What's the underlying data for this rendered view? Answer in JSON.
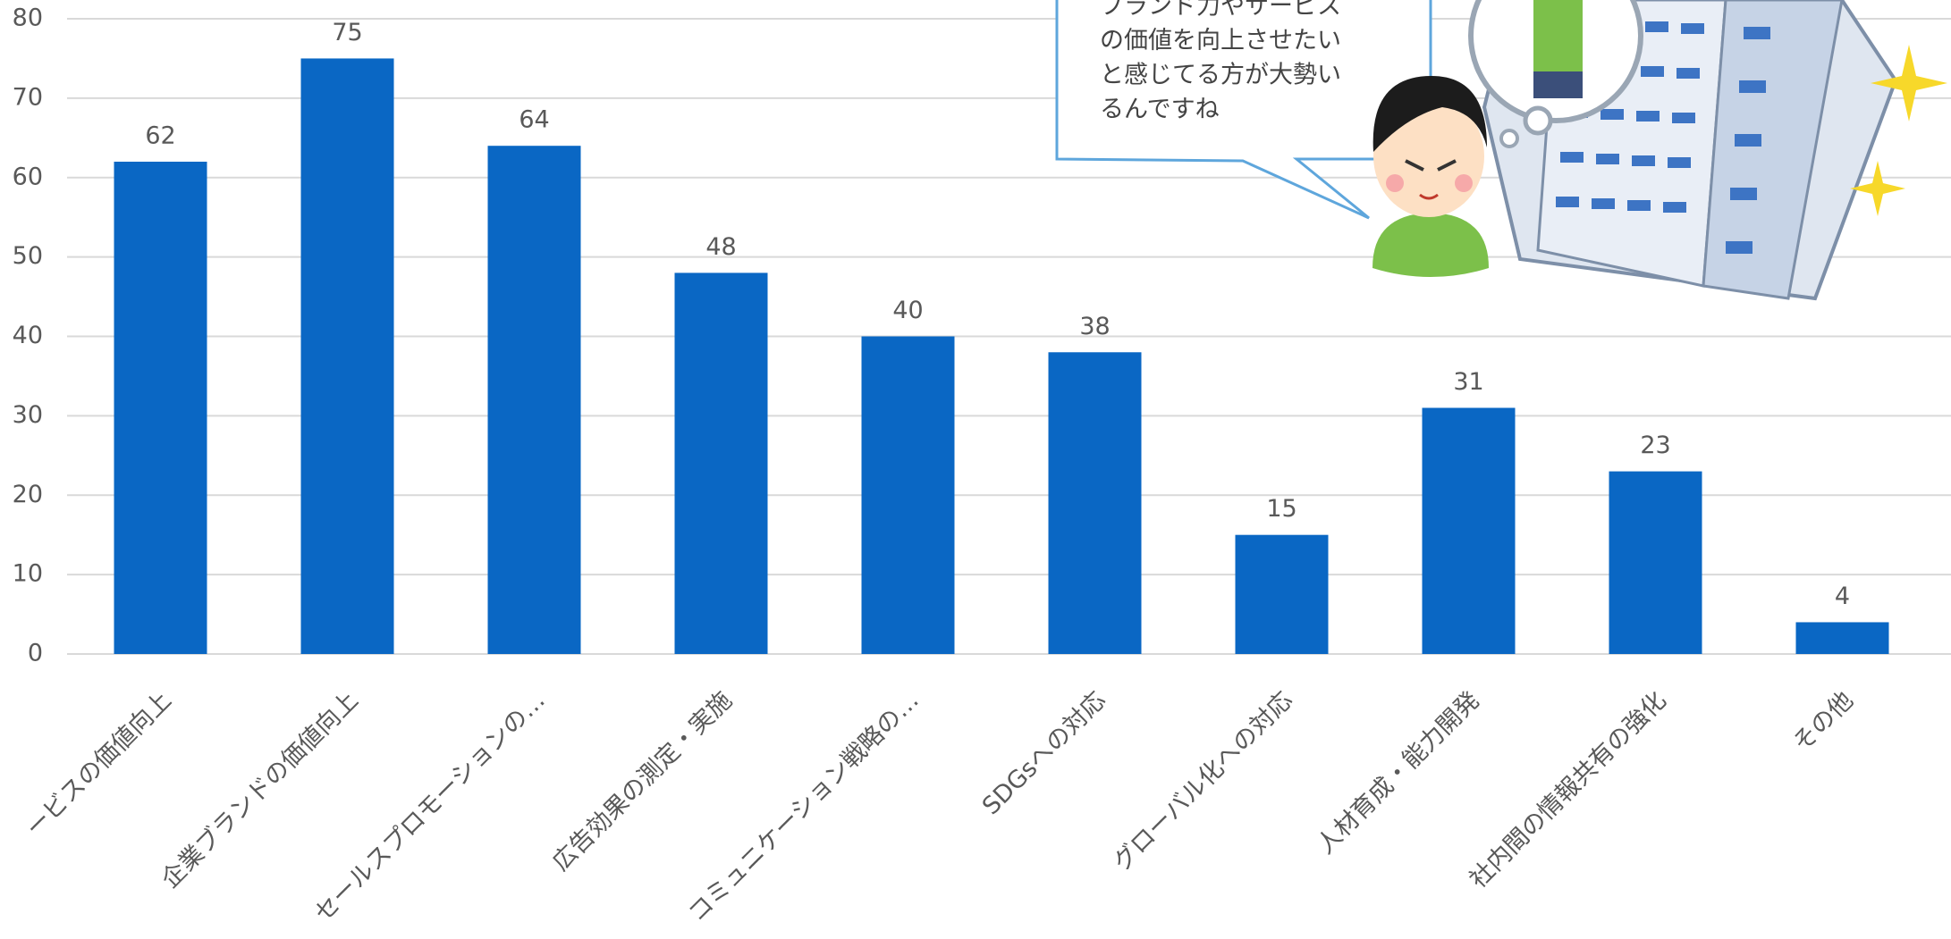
{
  "chart_data": {
    "type": "bar",
    "categories": [
      "ービスの価値向上",
      "企業ブランドの価値向上",
      "セールスプロモーションの…",
      "広告効果の測定・実施",
      "コミュニケーション戦略の…",
      "SDGsへの対応",
      "グローバル化への対応",
      "人材育成・能力開発",
      "社内間の情報共有の強化",
      "その他"
    ],
    "values": [
      62,
      75,
      64,
      48,
      40,
      38,
      15,
      31,
      23,
      4
    ],
    "color": "#0a67c4",
    "ylim": [
      0,
      80
    ],
    "yticks": [
      0,
      10,
      20,
      30,
      40,
      50,
      60,
      70,
      80
    ],
    "grid": true
  },
  "callout": {
    "lines": [
      "ブランド力やサービス",
      "の価値を向上させたい",
      "と感じてる方が大勢い",
      "るんですね"
    ]
  }
}
